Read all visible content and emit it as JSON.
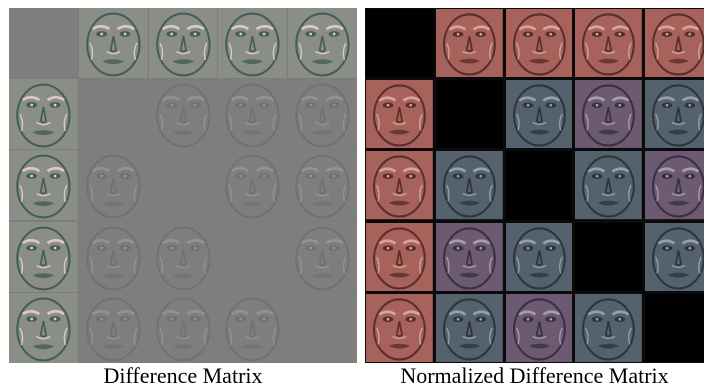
{
  "figure": {
    "panels": [
      {
        "caption": "Difference Matrix",
        "matrix_size": 5,
        "diagonal_fill": "#7e7f7c",
        "cells": [
          [
            "empty",
            "strong",
            "strong",
            "strong",
            "strong"
          ],
          [
            "strong",
            "empty",
            "faint",
            "faint",
            "faint"
          ],
          [
            "strong",
            "faint",
            "empty",
            "faint",
            "faint"
          ],
          [
            "strong",
            "faint",
            "faint",
            "empty",
            "faint"
          ],
          [
            "strong",
            "faint",
            "faint",
            "faint",
            "empty"
          ]
        ],
        "palette": {
          "background": "#7c7d7a",
          "strong_tint": "#8a8e86",
          "faint_tint": "#7e7f7c"
        }
      },
      {
        "caption": "Normalized Difference Matrix",
        "matrix_size": 5,
        "diagonal_fill": "#000000",
        "cells": [
          [
            "empty",
            "red",
            "red",
            "red",
            "red"
          ],
          [
            "red",
            "empty",
            "slate",
            "purple",
            "slate"
          ],
          [
            "red",
            "slate",
            "empty",
            "slate",
            "purple"
          ],
          [
            "red",
            "purple",
            "slate",
            "empty",
            "slate"
          ],
          [
            "red",
            "slate",
            "purple",
            "slate",
            "empty"
          ]
        ],
        "palette": {
          "background": "#0a0a0a",
          "red": "#a8625c",
          "slate": "#55616d",
          "purple": "#6b5a72"
        }
      }
    ]
  }
}
